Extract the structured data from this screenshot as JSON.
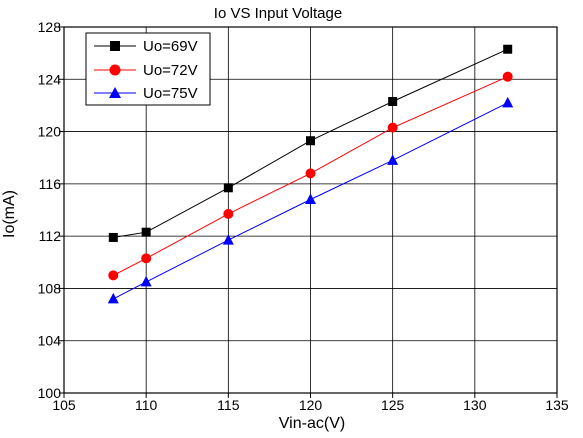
{
  "chart_data": {
    "type": "line",
    "title": "Io VS Input Voltage",
    "xlabel": "Vin-ac(V)",
    "ylabel": "Io(mA)",
    "xlim": [
      105,
      135
    ],
    "ylim": [
      100,
      128
    ],
    "xticks": [
      105,
      110,
      115,
      120,
      125,
      130,
      135
    ],
    "yticks": [
      100,
      104,
      108,
      112,
      116,
      120,
      124,
      128
    ],
    "grid": true,
    "legend_position": "top-left",
    "x": [
      108,
      110,
      115,
      120,
      125,
      132
    ],
    "series": [
      {
        "name": "Uo=69V",
        "color": "#000000",
        "marker": "square",
        "values": [
          111.9,
          112.3,
          115.7,
          119.3,
          122.3,
          126.3
        ]
      },
      {
        "name": "Uo=72V",
        "color": "#ff0000",
        "marker": "circle",
        "values": [
          109.0,
          110.3,
          113.7,
          116.8,
          120.3,
          124.2
        ]
      },
      {
        "name": "Uo=75V",
        "color": "#0000ff",
        "marker": "triangle",
        "values": [
          107.2,
          108.5,
          111.7,
          114.8,
          117.8,
          122.2
        ]
      }
    ]
  }
}
